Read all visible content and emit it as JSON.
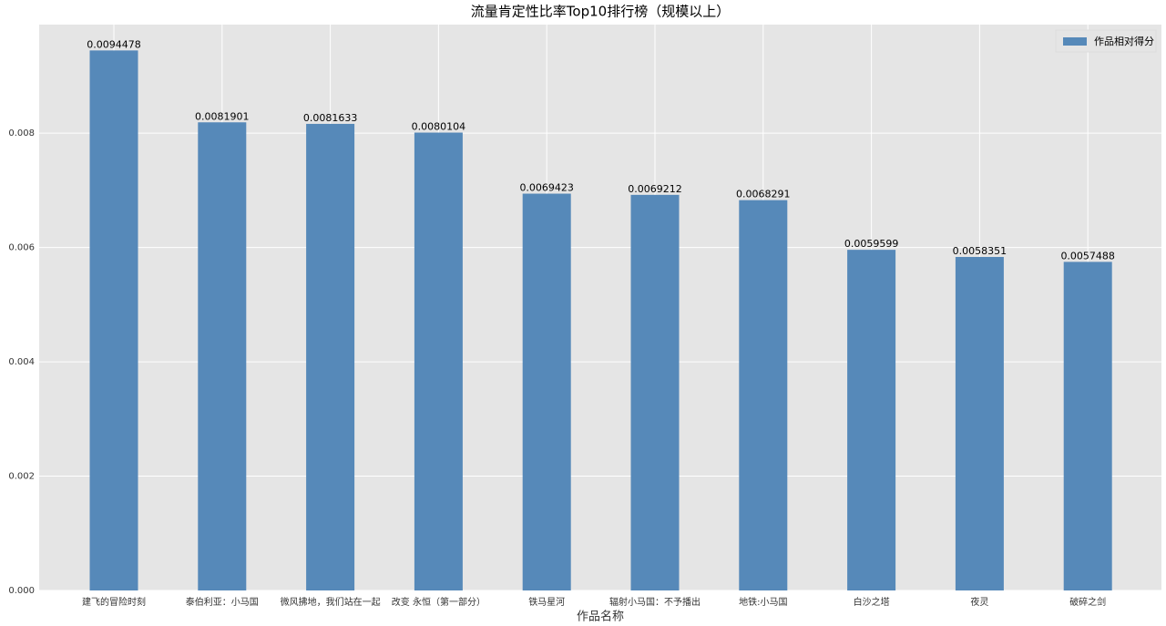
{
  "chart_data": {
    "type": "bar",
    "title": "流量肯定性比率Top10排行榜（规模以上）",
    "x_label": "作品名称",
    "categories": [
      "建飞的冒险时刻",
      "泰伯利亚：小马国",
      "微风拂地，我们站在一起",
      "改变 永恒（第一部分）",
      "铁马星河",
      "辐射小马国：不予播出",
      "地铁:小马国",
      "白沙之塔",
      "夜灵",
      "破碎之剑"
    ],
    "series": [
      {
        "name": "作品相对得分",
        "color": "#5689b9",
        "values": [
          0.0094478,
          0.0081901,
          0.0081633,
          0.0080104,
          0.0069423,
          0.0069212,
          0.0068291,
          0.0059599,
          0.0058351,
          0.0057488
        ]
      }
    ],
    "ylim": [
      0,
      0.0099
    ],
    "yticks": [
      {
        "value": 0,
        "label": "0.000"
      },
      {
        "value": 0.002,
        "label": "0.002"
      },
      {
        "value": 0.004,
        "label": "0.004"
      },
      {
        "value": 0.006,
        "label": "0.006"
      },
      {
        "value": 0.008,
        "label": "0.008"
      }
    ],
    "grid": true,
    "legend": "upper right"
  }
}
